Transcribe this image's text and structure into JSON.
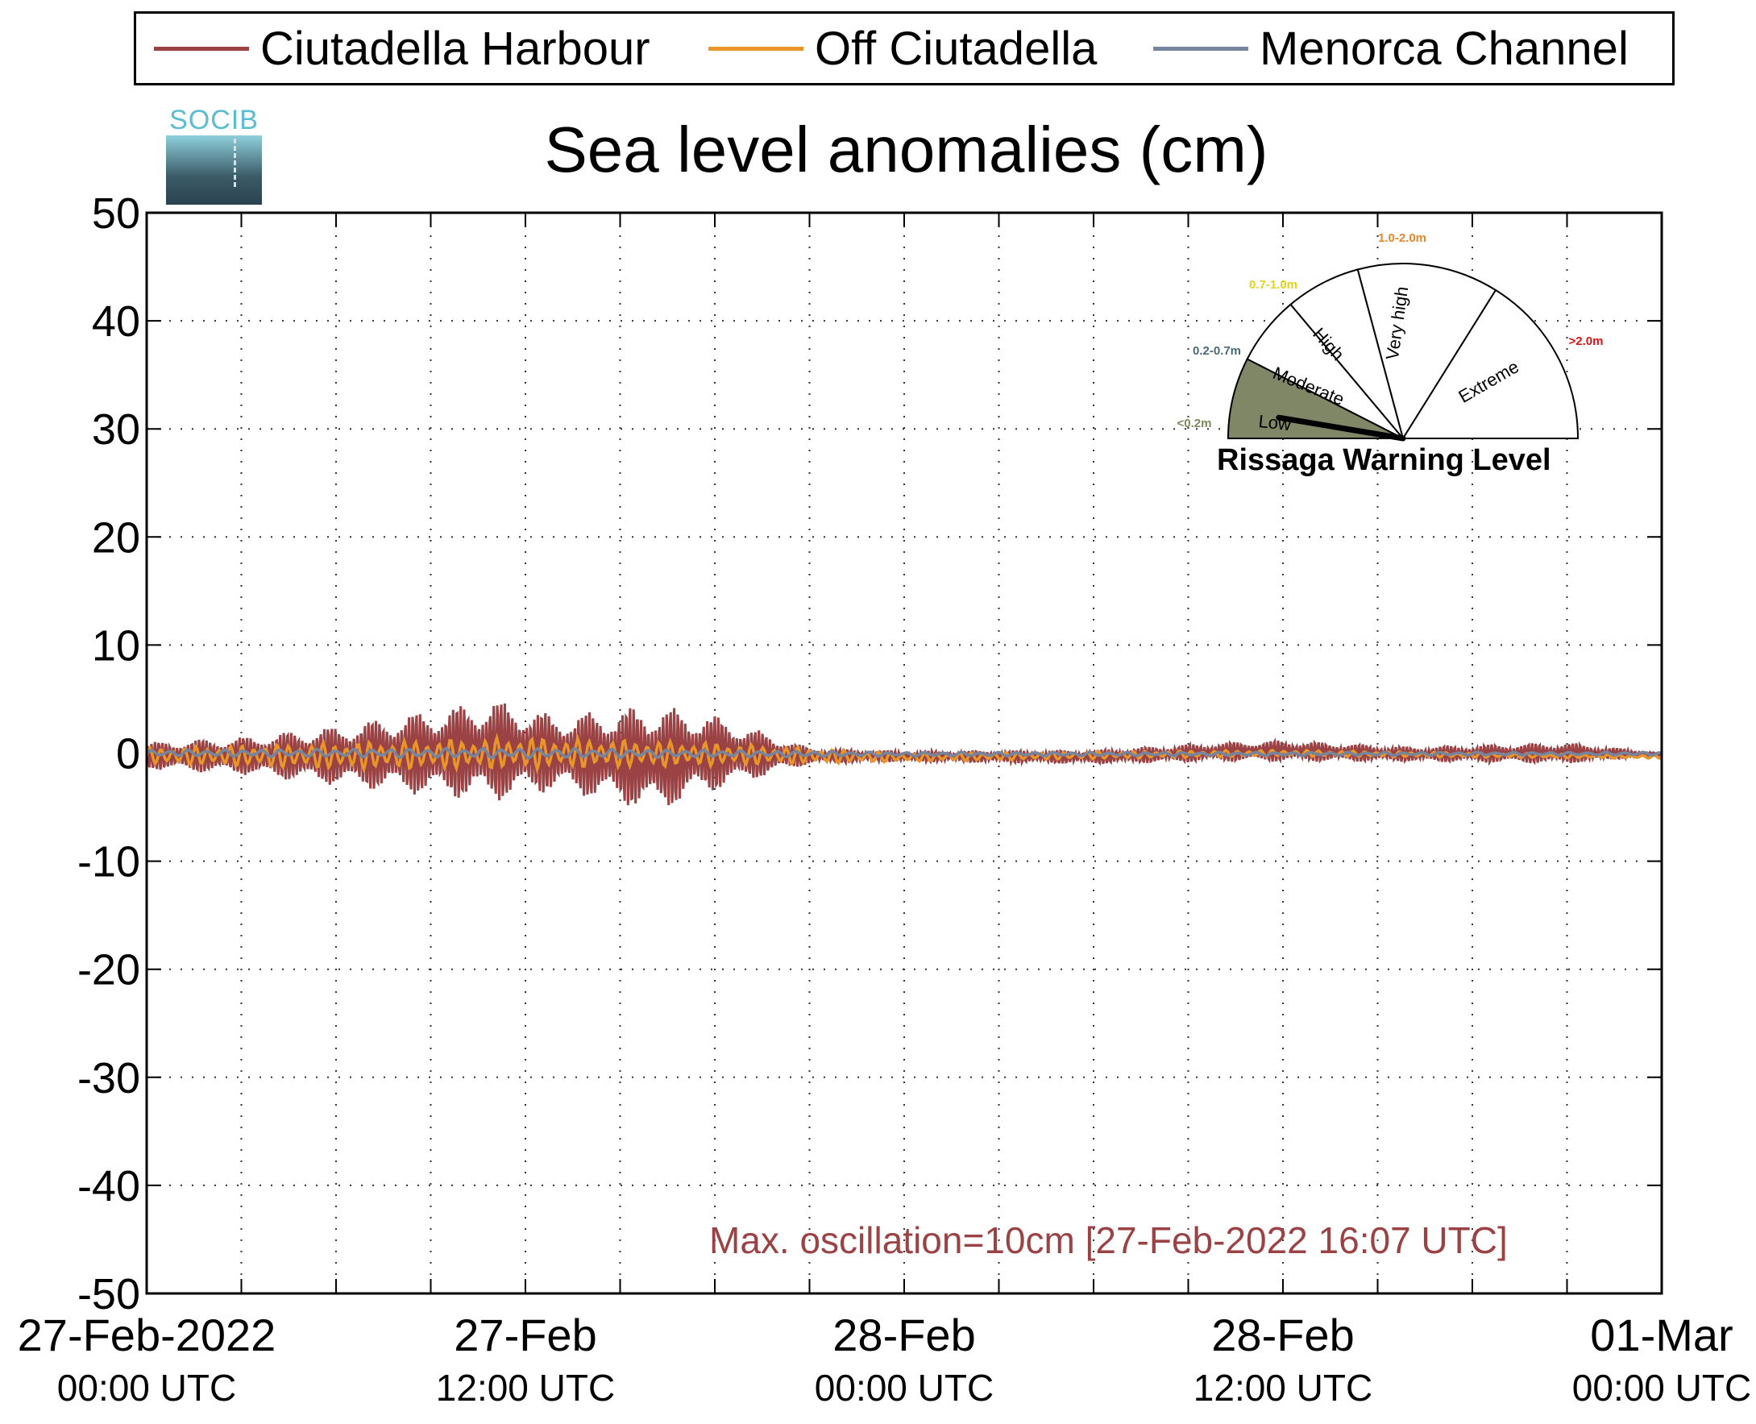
{
  "legend": [
    {
      "label": "Ciutadella Harbour",
      "color": "#9a4244"
    },
    {
      "label": "Off Ciutadella",
      "color": "#e8952a"
    },
    {
      "label": "Menorca Channel",
      "color": "#7585a0"
    }
  ],
  "logo": {
    "text": "SOCIB"
  },
  "chart_data": {
    "type": "line",
    "title": "Sea level anomalies (cm)",
    "ylim": [
      -50,
      50
    ],
    "y_ticks": [
      "50",
      "40",
      "30",
      "20",
      "10",
      "0",
      "-10",
      "-20",
      "-30",
      "-40",
      "-50"
    ],
    "xlim": [
      "2022-02-27 00:00",
      "2022-03-01 00:00"
    ],
    "x_ticks": [
      {
        "line1": "27-Feb-2022",
        "line2": "00:00 UTC"
      },
      {
        "line1": "27-Feb",
        "line2": "12:00 UTC"
      },
      {
        "line1": "28-Feb",
        "line2": "00:00 UTC"
      },
      {
        "line1": "28-Feb",
        "line2": "12:00 UTC"
      },
      {
        "line1": "01-Mar",
        "line2": "00:00 UTC"
      }
    ],
    "grid": true,
    "legend_position": "top",
    "series": [
      {
        "name": "Ciutadella Harbour",
        "color": "#9a4244",
        "oscillation_envelope_cm": [
          {
            "time": "2022-02-27 00:00",
            "min": -1.5,
            "max": 1.0
          },
          {
            "time": "2022-02-27 03:00",
            "min": -2.0,
            "max": 1.5
          },
          {
            "time": "2022-02-27 06:00",
            "min": -3.0,
            "max": 2.5
          },
          {
            "time": "2022-02-27 09:00",
            "min": -4.0,
            "max": 4.0
          },
          {
            "time": "2022-02-27 11:00",
            "min": -4.5,
            "max": 5.0
          },
          {
            "time": "2022-02-27 13:00",
            "min": -3.5,
            "max": 3.5
          },
          {
            "time": "2022-02-27 16:07",
            "min": -5.5,
            "max": 4.5
          },
          {
            "time": "2022-02-27 18:00",
            "min": -3.5,
            "max": 3.5
          },
          {
            "time": "2022-02-27 21:00",
            "min": -1.0,
            "max": 0.5
          },
          {
            "time": "2022-02-28 00:00",
            "min": -0.8,
            "max": 0.2
          },
          {
            "time": "2022-02-28 06:00",
            "min": -1.0,
            "max": 0.3
          },
          {
            "time": "2022-02-28 10:00",
            "min": -0.8,
            "max": 1.0
          },
          {
            "time": "2022-02-28 12:00",
            "min": -0.8,
            "max": 1.2
          },
          {
            "time": "2022-02-28 16:00",
            "min": -0.8,
            "max": 0.6
          },
          {
            "time": "2022-02-28 21:00",
            "min": -1.0,
            "max": 1.0
          },
          {
            "time": "2022-03-01 00:00",
            "min": -0.2,
            "max": 0.0
          }
        ]
      },
      {
        "name": "Off Ciutadella",
        "color": "#e8952a",
        "oscillation_envelope_cm": [
          {
            "time": "2022-02-27 00:00",
            "min": -1.0,
            "max": 0.5
          },
          {
            "time": "2022-02-27 06:00",
            "min": -1.5,
            "max": 1.0
          },
          {
            "time": "2022-02-27 12:00",
            "min": -1.5,
            "max": 1.5
          },
          {
            "time": "2022-02-27 18:00",
            "min": -1.2,
            "max": 1.0
          },
          {
            "time": "2022-02-28 00:00",
            "min": -0.8,
            "max": 0.0
          },
          {
            "time": "2022-02-28 12:00",
            "min": -0.3,
            "max": 0.3
          },
          {
            "time": "2022-03-01 00:00",
            "min": -0.5,
            "max": -0.2
          }
        ]
      },
      {
        "name": "Menorca Channel",
        "color": "#7585a0",
        "oscillation_envelope_cm": [
          {
            "time": "2022-02-27 00:00",
            "min": -0.3,
            "max": 0.3
          },
          {
            "time": "2022-02-27 12:00",
            "min": -0.5,
            "max": 0.5
          },
          {
            "time": "2022-02-28 00:00",
            "min": -0.3,
            "max": 0.1
          },
          {
            "time": "2022-03-01 00:00",
            "min": -0.2,
            "max": 0.1
          }
        ]
      }
    ],
    "annotation": "Max. oscillation=10cm [27-Feb-2022 16:07 UTC]"
  },
  "warning_gauge": {
    "caption": "Rissaga Warning Level",
    "current_level": "Low",
    "sectors": [
      {
        "label": "Low",
        "range": "<0.2m",
        "range_color": "#7a8a5a",
        "fill": "#7f8766"
      },
      {
        "label": "Moderate",
        "range": "0.2-0.7m",
        "range_color": "#4a6a78",
        "fill": "#ffffff"
      },
      {
        "label": "High",
        "range": "0.7-1.0m",
        "range_color": "#e6d21a",
        "fill": "#ffffff"
      },
      {
        "label": "Very high",
        "range": "1.0-2.0m",
        "range_color": "#e8862a",
        "fill": "#ffffff"
      },
      {
        "label": "Extreme",
        "range": ">2.0m",
        "range_color": "#dd1111",
        "fill": "#ffffff"
      }
    ]
  }
}
